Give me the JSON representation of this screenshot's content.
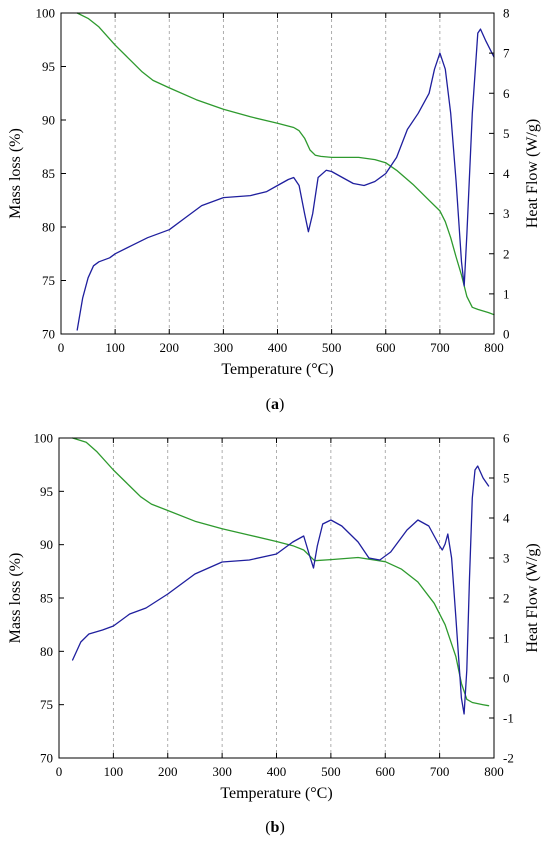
{
  "colors": {
    "mass": "#2e9a2e",
    "heat": "#1f1f9e",
    "grid": "#9a9a9a"
  },
  "chart_data": [
    {
      "panel": "a",
      "panel_label": "a",
      "type": "line",
      "xlabel": "Temperature (°C)",
      "ylabel_left": "Mass loss (%)",
      "ylabel_right": "Heat Flow (W/g)",
      "xlim": [
        0,
        800
      ],
      "ylim_left": [
        70,
        100
      ],
      "ylim_right": [
        0,
        8
      ],
      "x_ticks": [
        0,
        100,
        200,
        300,
        400,
        500,
        600,
        700,
        800
      ],
      "y_left_ticks": [
        70,
        75,
        80,
        85,
        90,
        95,
        100
      ],
      "y_right_ticks": [
        0,
        1,
        2,
        3,
        4,
        5,
        6,
        7,
        8
      ],
      "grid": "vertical-dashed",
      "series": [
        {
          "axis": "left",
          "color": "#2e9a2e",
          "points": [
            [
              30,
              100
            ],
            [
              50,
              99.5
            ],
            [
              70,
              98.7
            ],
            [
              100,
              97.0
            ],
            [
              130,
              95.5
            ],
            [
              150,
              94.5
            ],
            [
              170,
              93.7
            ],
            [
              200,
              93.0
            ],
            [
              250,
              91.9
            ],
            [
              300,
              91.0
            ],
            [
              350,
              90.3
            ],
            [
              400,
              89.7
            ],
            [
              430,
              89.3
            ],
            [
              440,
              89.0
            ],
            [
              450,
              88.3
            ],
            [
              460,
              87.2
            ],
            [
              470,
              86.7
            ],
            [
              480,
              86.6
            ],
            [
              500,
              86.5
            ],
            [
              550,
              86.5
            ],
            [
              580,
              86.3
            ],
            [
              600,
              86.0
            ],
            [
              620,
              85.3
            ],
            [
              650,
              84.0
            ],
            [
              680,
              82.5
            ],
            [
              700,
              81.5
            ],
            [
              710,
              80.5
            ],
            [
              720,
              79.0
            ],
            [
              730,
              77.2
            ],
            [
              740,
              75.5
            ],
            [
              750,
              73.5
            ],
            [
              760,
              72.5
            ],
            [
              770,
              72.3
            ],
            [
              790,
              72.0
            ],
            [
              800,
              71.8
            ]
          ]
        },
        {
          "axis": "right",
          "color": "#1f1f9e",
          "points": [
            [
              30,
              0.1
            ],
            [
              40,
              0.9
            ],
            [
              50,
              1.4
            ],
            [
              60,
              1.7
            ],
            [
              70,
              1.8
            ],
            [
              90,
              1.9
            ],
            [
              100,
              2.0
            ],
            [
              130,
              2.2
            ],
            [
              160,
              2.4
            ],
            [
              200,
              2.6
            ],
            [
              230,
              2.9
            ],
            [
              260,
              3.2
            ],
            [
              300,
              3.4
            ],
            [
              350,
              3.45
            ],
            [
              380,
              3.55
            ],
            [
              400,
              3.7
            ],
            [
              420,
              3.85
            ],
            [
              430,
              3.9
            ],
            [
              440,
              3.7
            ],
            [
              450,
              3.0
            ],
            [
              457,
              2.55
            ],
            [
              465,
              3.0
            ],
            [
              475,
              3.9
            ],
            [
              490,
              4.08
            ],
            [
              500,
              4.05
            ],
            [
              520,
              3.9
            ],
            [
              540,
              3.75
            ],
            [
              560,
              3.7
            ],
            [
              580,
              3.8
            ],
            [
              600,
              4.0
            ],
            [
              620,
              4.4
            ],
            [
              640,
              5.1
            ],
            [
              660,
              5.5
            ],
            [
              680,
              6.0
            ],
            [
              690,
              6.6
            ],
            [
              700,
              7.0
            ],
            [
              710,
              6.6
            ],
            [
              720,
              5.5
            ],
            [
              730,
              3.8
            ],
            [
              740,
              1.8
            ],
            [
              745,
              1.2
            ],
            [
              750,
              2.5
            ],
            [
              760,
              5.5
            ],
            [
              770,
              7.5
            ],
            [
              775,
              7.6
            ],
            [
              785,
              7.3
            ],
            [
              800,
              6.9
            ]
          ]
        }
      ]
    },
    {
      "panel": "b",
      "panel_label": "b",
      "type": "line",
      "xlabel": "Temperature (°C)",
      "ylabel_left": "Mass loss (%)",
      "ylabel_right": "Heat Flow (W/g)",
      "xlim": [
        0,
        800
      ],
      "ylim_left": [
        70,
        100
      ],
      "ylim_right": [
        -2,
        6
      ],
      "x_ticks": [
        0,
        100,
        200,
        300,
        400,
        500,
        600,
        700,
        800
      ],
      "y_left_ticks": [
        70,
        75,
        80,
        85,
        90,
        95,
        100
      ],
      "y_right_ticks": [
        -2,
        -1,
        0,
        1,
        2,
        3,
        4,
        5,
        6
      ],
      "grid": "vertical-dashed",
      "series": [
        {
          "axis": "left",
          "color": "#2e9a2e",
          "points": [
            [
              25,
              100
            ],
            [
              50,
              99.6
            ],
            [
              70,
              98.7
            ],
            [
              100,
              97.0
            ],
            [
              130,
              95.5
            ],
            [
              150,
              94.5
            ],
            [
              170,
              93.8
            ],
            [
              200,
              93.2
            ],
            [
              250,
              92.2
            ],
            [
              300,
              91.5
            ],
            [
              350,
              90.9
            ],
            [
              400,
              90.3
            ],
            [
              430,
              89.9
            ],
            [
              450,
              89.5
            ],
            [
              460,
              89.0
            ],
            [
              470,
              88.5
            ],
            [
              500,
              88.6
            ],
            [
              550,
              88.8
            ],
            [
              600,
              88.4
            ],
            [
              630,
              87.7
            ],
            [
              660,
              86.5
            ],
            [
              690,
              84.5
            ],
            [
              710,
              82.5
            ],
            [
              720,
              81.0
            ],
            [
              730,
              79.5
            ],
            [
              740,
              77.0
            ],
            [
              750,
              75.5
            ],
            [
              760,
              75.2
            ],
            [
              780,
              75.0
            ],
            [
              790,
              74.9
            ]
          ]
        },
        {
          "axis": "right",
          "color": "#1f1f9e",
          "points": [
            [
              25,
              0.45
            ],
            [
              40,
              0.9
            ],
            [
              55,
              1.1
            ],
            [
              80,
              1.2
            ],
            [
              100,
              1.3
            ],
            [
              130,
              1.6
            ],
            [
              160,
              1.75
            ],
            [
              200,
              2.1
            ],
            [
              250,
              2.6
            ],
            [
              300,
              2.9
            ],
            [
              350,
              2.95
            ],
            [
              400,
              3.1
            ],
            [
              430,
              3.4
            ],
            [
              450,
              3.55
            ],
            [
              460,
              3.1
            ],
            [
              468,
              2.75
            ],
            [
              475,
              3.3
            ],
            [
              485,
              3.85
            ],
            [
              500,
              3.95
            ],
            [
              520,
              3.8
            ],
            [
              550,
              3.4
            ],
            [
              570,
              3.0
            ],
            [
              590,
              2.95
            ],
            [
              610,
              3.15
            ],
            [
              640,
              3.7
            ],
            [
              660,
              3.95
            ],
            [
              680,
              3.8
            ],
            [
              700,
              3.3
            ],
            [
              705,
              3.2
            ],
            [
              710,
              3.35
            ],
            [
              715,
              3.6
            ],
            [
              722,
              3.0
            ],
            [
              730,
              1.5
            ],
            [
              740,
              -0.5
            ],
            [
              745,
              -0.9
            ],
            [
              750,
              0.2
            ],
            [
              755,
              2.5
            ],
            [
              760,
              4.5
            ],
            [
              765,
              5.2
            ],
            [
              770,
              5.3
            ],
            [
              780,
              5.0
            ],
            [
              790,
              4.8
            ]
          ]
        }
      ]
    }
  ]
}
